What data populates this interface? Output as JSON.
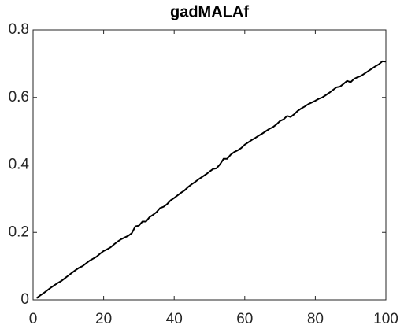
{
  "chart_data": {
    "type": "line",
    "title": "gadMALAf",
    "x": [
      1,
      2,
      3,
      4,
      5,
      6,
      7,
      8,
      9,
      10,
      11,
      12,
      13,
      14,
      15,
      16,
      17,
      18,
      19,
      20,
      21,
      22,
      23,
      24,
      25,
      26,
      27,
      28,
      29,
      30,
      31,
      32,
      33,
      34,
      35,
      36,
      37,
      38,
      39,
      40,
      41,
      42,
      43,
      44,
      45,
      46,
      47,
      48,
      49,
      50,
      51,
      52,
      53,
      54,
      55,
      56,
      57,
      58,
      59,
      60,
      61,
      62,
      63,
      64,
      65,
      66,
      67,
      68,
      69,
      70,
      71,
      72,
      73,
      74,
      75,
      76,
      77,
      78,
      79,
      80,
      81,
      82,
      83,
      84,
      85,
      86,
      87,
      88,
      89,
      90,
      91,
      92,
      93,
      94,
      95,
      96,
      97,
      98,
      99,
      100
    ],
    "series": [
      {
        "color": "#000000",
        "values": [
          0.005,
          0.013,
          0.02,
          0.028,
          0.036,
          0.043,
          0.05,
          0.056,
          0.064,
          0.072,
          0.08,
          0.088,
          0.095,
          0.1,
          0.108,
          0.116,
          0.122,
          0.128,
          0.137,
          0.145,
          0.15,
          0.156,
          0.165,
          0.173,
          0.18,
          0.185,
          0.19,
          0.198,
          0.218,
          0.22,
          0.232,
          0.232,
          0.245,
          0.252,
          0.26,
          0.272,
          0.276,
          0.284,
          0.295,
          0.302,
          0.31,
          0.318,
          0.325,
          0.335,
          0.343,
          0.35,
          0.358,
          0.365,
          0.372,
          0.38,
          0.388,
          0.39,
          0.402,
          0.418,
          0.418,
          0.43,
          0.438,
          0.443,
          0.45,
          0.46,
          0.467,
          0.474,
          0.48,
          0.487,
          0.493,
          0.5,
          0.507,
          0.512,
          0.52,
          0.53,
          0.535,
          0.545,
          0.542,
          0.55,
          0.56,
          0.567,
          0.573,
          0.58,
          0.585,
          0.59,
          0.596,
          0.6,
          0.607,
          0.614,
          0.622,
          0.63,
          0.632,
          0.64,
          0.649,
          0.645,
          0.655,
          0.66,
          0.664,
          0.671,
          0.678,
          0.685,
          0.692,
          0.698,
          0.707,
          0.706
        ]
      }
    ],
    "xlim": [
      0,
      100
    ],
    "xticks": [
      0,
      20,
      40,
      60,
      80,
      100
    ],
    "ylim": [
      0,
      0.8
    ],
    "yticks": [
      0,
      0.2,
      0.4,
      0.6,
      0.8
    ]
  }
}
